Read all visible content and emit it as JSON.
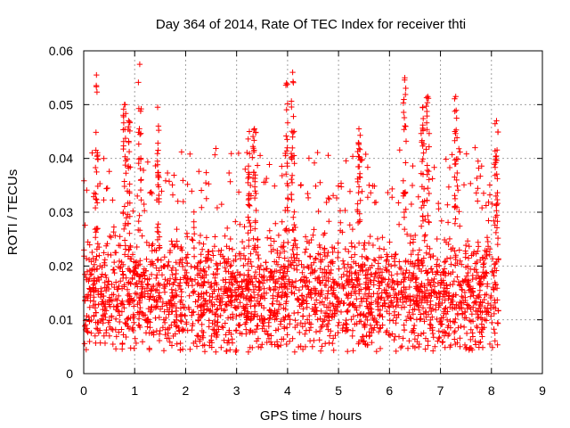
{
  "chart_data": {
    "type": "scatter",
    "title": "Day 364 of 2014, Rate Of TEC Index for receiver thti",
    "xlabel": "GPS time / hours",
    "ylabel": "ROTI / TECUs",
    "xlim": [
      0,
      9
    ],
    "ylim": [
      0,
      0.06
    ],
    "xticks": [
      "0",
      "1",
      "2",
      "3",
      "4",
      "5",
      "6",
      "7",
      "8",
      "9"
    ],
    "yticks": [
      "0",
      "0.01",
      "0.02",
      "0.03",
      "0.04",
      "0.05",
      "0.06"
    ],
    "grid": true,
    "marker": "+",
    "series": [
      {
        "name": "ROTI",
        "color": "#ff0000",
        "x_range": [
          0.0,
          8.15
        ],
        "typical_range": [
          0.006,
          0.03
        ],
        "median_approx": 0.015,
        "peaks": [
          {
            "x": 0.25,
            "y": 0.0555
          },
          {
            "x": 0.8,
            "y": 0.05
          },
          {
            "x": 0.88,
            "y": 0.047
          },
          {
            "x": 1.1,
            "y": 0.0575
          },
          {
            "x": 1.45,
            "y": 0.0495
          },
          {
            "x": 3.25,
            "y": 0.045
          },
          {
            "x": 3.35,
            "y": 0.0455
          },
          {
            "x": 3.98,
            "y": 0.054
          },
          {
            "x": 4.1,
            "y": 0.056
          },
          {
            "x": 5.4,
            "y": 0.0455
          },
          {
            "x": 6.3,
            "y": 0.055
          },
          {
            "x": 6.65,
            "y": 0.0495
          },
          {
            "x": 6.75,
            "y": 0.0515
          },
          {
            "x": 7.3,
            "y": 0.0515
          },
          {
            "x": 8.1,
            "y": 0.047
          }
        ]
      }
    ]
  }
}
